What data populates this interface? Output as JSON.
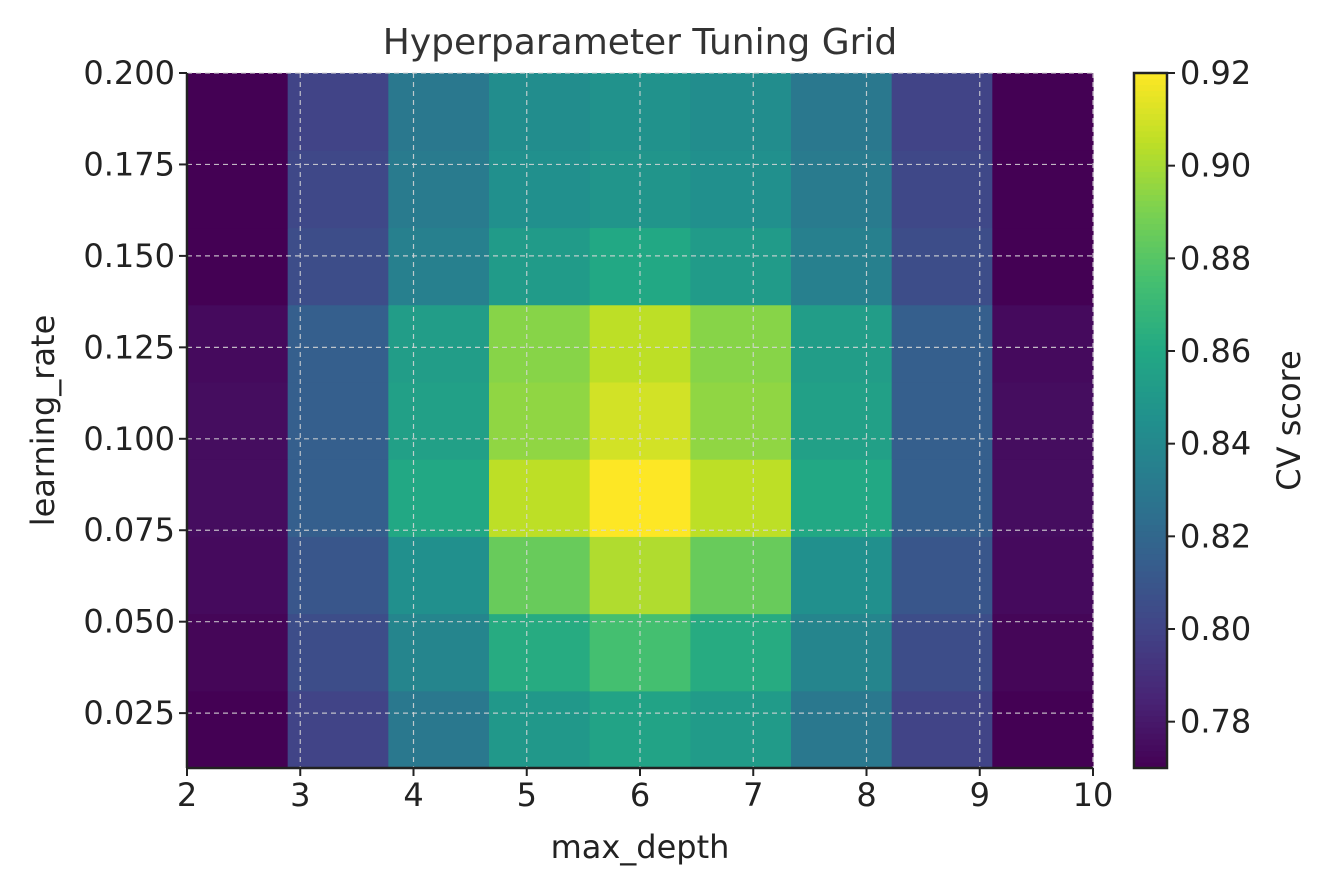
{
  "chart_data": {
    "type": "heatmap",
    "title": "Hyperparameter Tuning Grid",
    "xlabel": "max_depth",
    "ylabel": "learning_rate",
    "colorbar_label": "CV score",
    "x_ticks": [
      2,
      3,
      4,
      5,
      6,
      7,
      8,
      9,
      10
    ],
    "y_ticks": [
      0.025,
      0.05,
      0.075,
      0.1,
      0.125,
      0.15,
      0.175,
      0.2
    ],
    "colorbar_ticks": [
      0.78,
      0.8,
      0.82,
      0.84,
      0.86,
      0.88,
      0.9,
      0.92
    ],
    "xlim": [
      2,
      10
    ],
    "ylim": [
      0.01,
      0.2
    ],
    "clim": [
      0.77,
      0.92
    ],
    "colormap": "viridis",
    "grid": true,
    "x_centers": [
      2.45,
      3.34,
      4.24,
      5.13,
      6.03,
      6.92,
      7.82,
      8.71,
      9.6
    ],
    "y_centers": [
      0.02,
      0.041,
      0.062,
      0.083,
      0.104,
      0.125,
      0.146,
      0.168,
      0.189
    ],
    "values": [
      [
        0.77,
        0.8,
        0.83,
        0.85,
        0.857,
        0.852,
        0.83,
        0.8,
        0.77
      ],
      [
        0.772,
        0.805,
        0.838,
        0.862,
        0.875,
        0.862,
        0.838,
        0.805,
        0.772
      ],
      [
        0.774,
        0.81,
        0.845,
        0.885,
        0.902,
        0.885,
        0.845,
        0.81,
        0.774
      ],
      [
        0.775,
        0.815,
        0.86,
        0.905,
        0.92,
        0.905,
        0.86,
        0.815,
        0.775
      ],
      [
        0.775,
        0.815,
        0.855,
        0.895,
        0.91,
        0.895,
        0.855,
        0.815,
        0.775
      ],
      [
        0.774,
        0.815,
        0.853,
        0.893,
        0.905,
        0.893,
        0.853,
        0.815,
        0.774
      ],
      [
        0.77,
        0.805,
        0.835,
        0.852,
        0.86,
        0.852,
        0.835,
        0.805,
        0.77
      ],
      [
        0.77,
        0.802,
        0.832,
        0.845,
        0.848,
        0.845,
        0.832,
        0.802,
        0.77
      ],
      [
        0.77,
        0.8,
        0.83,
        0.843,
        0.846,
        0.843,
        0.83,
        0.8,
        0.77
      ]
    ]
  }
}
